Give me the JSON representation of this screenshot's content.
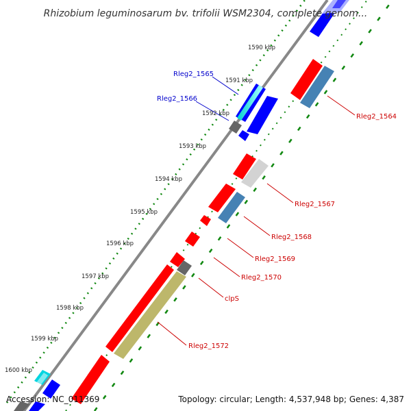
{
  "title": "Rhizobium leguminosarum bv. trifolii WSM2304, complete genom...",
  "accession": "Accession: NC_011369",
  "topology": "Topology: circular; Length: 4,537,948 bp; Genes: 4,387",
  "ticks": [
    "1590 kbp",
    "1591 kbp",
    "1592 kbp",
    "1593 kbp",
    "1594 kbp",
    "1595 kbp",
    "1596 kbp",
    "1597 kbp",
    "1598 kbp",
    "1599 kbp",
    "1600 kbp"
  ],
  "genes_left": [
    "Rleg2_1565",
    "Rleg2_1566"
  ],
  "genes_right": [
    "Rleg2_1564",
    "Rleg2_1567",
    "Rleg2_1568",
    "Rleg2_1569",
    "Rleg2_1570",
    "clpS",
    "Rleg2_1572"
  ],
  "colors": {
    "cds": "#ff0000",
    "gene": "#0000ff",
    "reg": "#4682b4",
    "misc": "#bdb76b",
    "grey": "#808080",
    "light": "#d3d3d3",
    "cyan": "#00e5ee",
    "dots": "#118811",
    "backbone": "#888888",
    "left_label": "#0000cc",
    "right_label": "#cc0000"
  }
}
